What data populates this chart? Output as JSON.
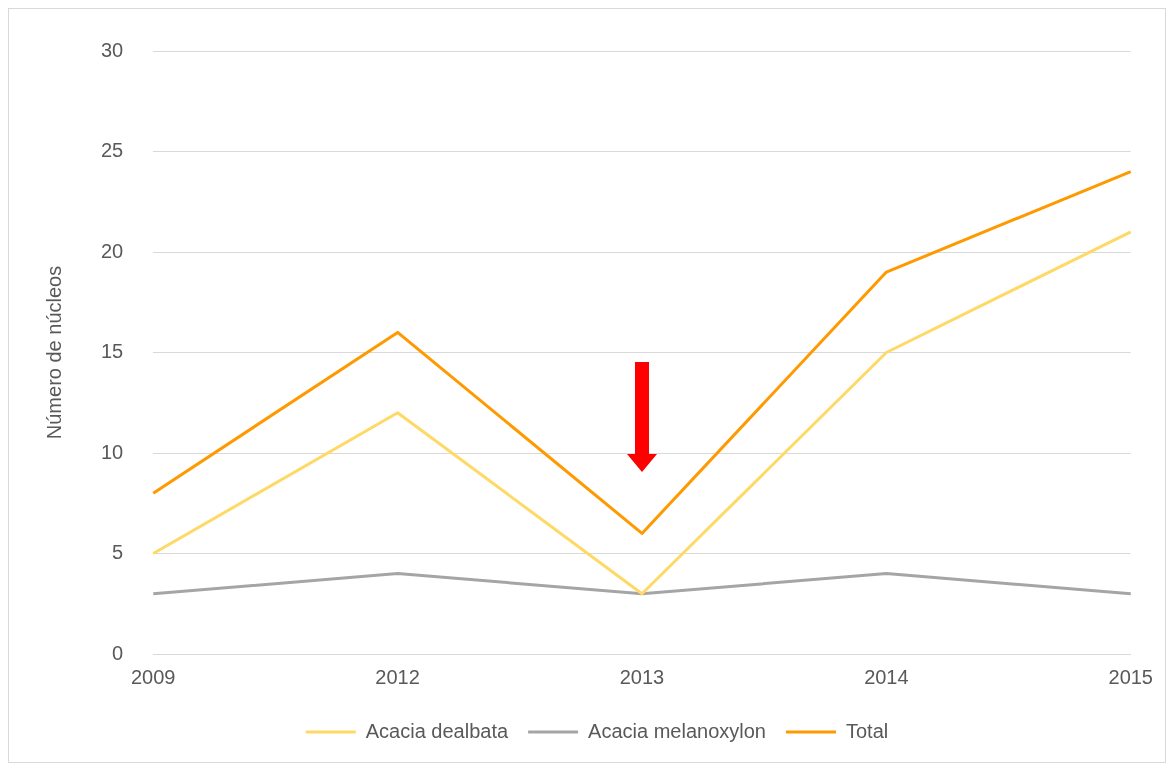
{
  "chart_data": {
    "type": "line",
    "ylabel": "Número de núcleos",
    "categories": [
      "2009",
      "2012",
      "2013",
      "2014",
      "2015"
    ],
    "series": [
      {
        "name": "Acacia dealbata",
        "color": "#ffd966",
        "values": [
          5,
          12,
          3,
          15,
          21
        ]
      },
      {
        "name": "Acacia melanoxylon",
        "color": "#a5a5a5",
        "values": [
          3,
          4,
          3,
          4,
          3
        ]
      },
      {
        "name": "Total",
        "color": "#ff9900",
        "values": [
          8,
          16,
          6,
          19,
          24
        ]
      }
    ],
    "ylim": [
      0,
      30
    ],
    "yticks": [
      0,
      5,
      10,
      15,
      20,
      25,
      30
    ],
    "grid": "y",
    "legend": "bottom",
    "marker": "none",
    "line_style": "solid"
  }
}
